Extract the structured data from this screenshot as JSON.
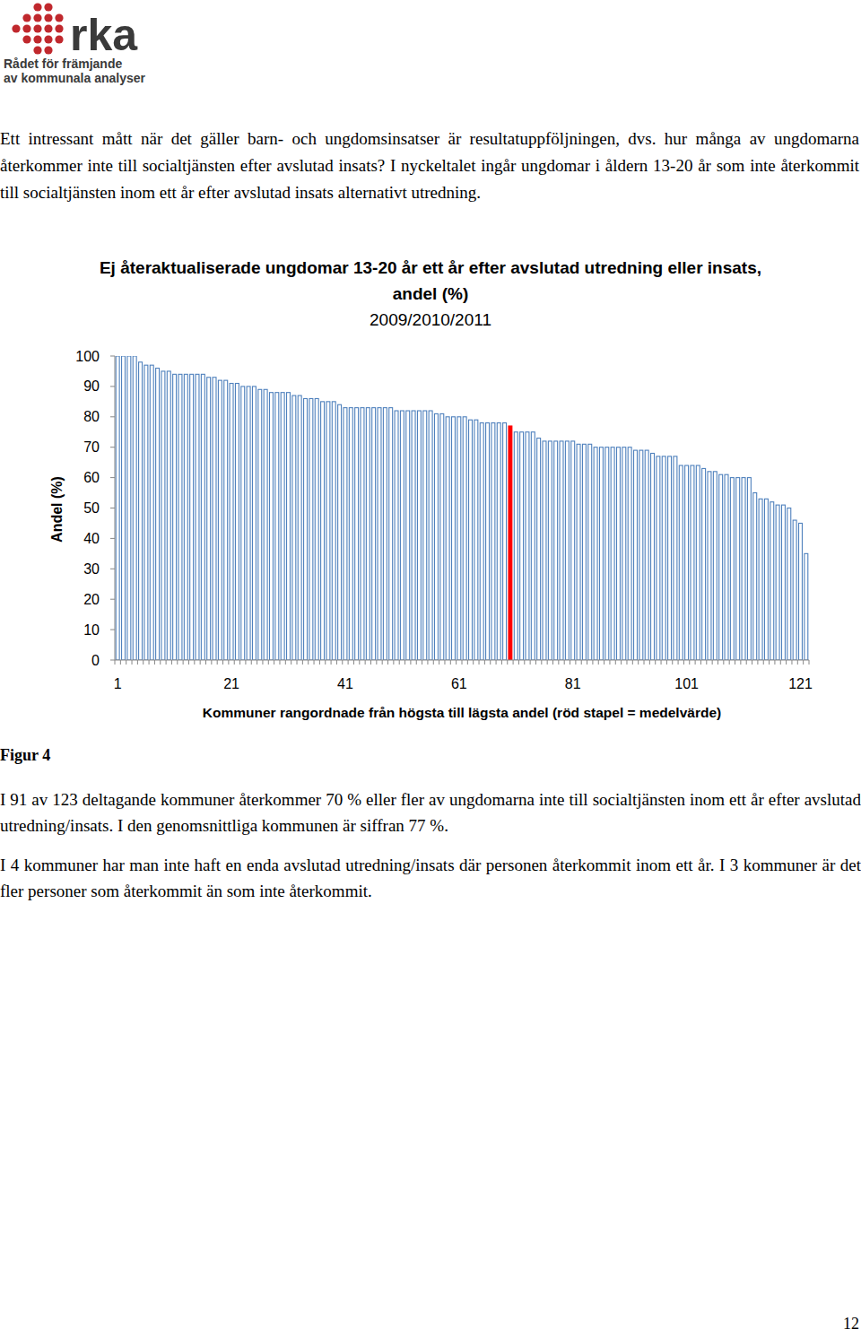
{
  "header": {
    "logo_text": "rka",
    "logo_subtitle": [
      "Rådet för främjande",
      "av kommunala analyser"
    ]
  },
  "intro": "Ett intressant mått när det gäller barn- och ungdomsinsatser är resultatuppföljningen, dvs. hur många av ungdomarna återkommer inte till socialtjänsten efter avslutad insats? I nyckeltalet ingår ungdomar i åldern 13-20 år som inte återkommit till socialtjänsten inom ett år efter avslutad insats alternativt utredning.",
  "chart_data": {
    "type": "bar",
    "title": "Ej återaktualiserade ungdomar 13-20 år ett år efter avslutad utredning eller insats, andel (%)",
    "subtitle": "2009/2010/2011",
    "x_label": "Kommuner rangordnade från högsta till lägsta andel (röd stapel = medelvärde)",
    "y_label": "Andel (%)",
    "categories": [
      "1",
      null,
      null,
      null,
      null,
      null,
      null,
      null,
      null,
      null,
      null,
      null,
      null,
      null,
      null,
      null,
      null,
      null,
      null,
      null,
      "21",
      null,
      null,
      null,
      null,
      null,
      null,
      null,
      null,
      null,
      null,
      null,
      null,
      null,
      null,
      null,
      null,
      null,
      null,
      null,
      "41",
      null,
      null,
      null,
      null,
      null,
      null,
      null,
      null,
      null,
      null,
      null,
      null,
      null,
      null,
      null,
      null,
      null,
      null,
      null,
      "61",
      null,
      null,
      null,
      null,
      null,
      null,
      null,
      null,
      null,
      null,
      null,
      null,
      null,
      null,
      null,
      null,
      null,
      null,
      null,
      "81",
      null,
      null,
      null,
      null,
      null,
      null,
      null,
      null,
      null,
      null,
      null,
      null,
      null,
      null,
      null,
      null,
      null,
      null,
      null,
      "101",
      null,
      null,
      null,
      null,
      null,
      null,
      null,
      null,
      null,
      null,
      null,
      null,
      null,
      null,
      null,
      null,
      null,
      null,
      null,
      "121",
      null
    ],
    "values": [
      100,
      100,
      100,
      100,
      98,
      97,
      97,
      96,
      95,
      95,
      94,
      94,
      94,
      94,
      94,
      94,
      93,
      93,
      92,
      92,
      91,
      91,
      90,
      90,
      90,
      89,
      89,
      88,
      88,
      88,
      88,
      87,
      87,
      86,
      86,
      86,
      85,
      85,
      85,
      84,
      83,
      83,
      83,
      83,
      83,
      83,
      83,
      83,
      83,
      82,
      82,
      82,
      82,
      82,
      82,
      82,
      81,
      81,
      80,
      80,
      80,
      80,
      79,
      79,
      78,
      78,
      78,
      78,
      78,
      77,
      75,
      75,
      75,
      75,
      73,
      72,
      72,
      72,
      72,
      72,
      72,
      71,
      71,
      71,
      70,
      70,
      70,
      70,
      70,
      70,
      70,
      69,
      69,
      69,
      68,
      67,
      67,
      67,
      67,
      64,
      64,
      64,
      64,
      63,
      62,
      62,
      61,
      61,
      60,
      60,
      60,
      60,
      55,
      53,
      53,
      52,
      51,
      51,
      50,
      46,
      45,
      35
    ],
    "colors": [
      "#4f81bd",
      "#4f81bd",
      "#4f81bd",
      "#4f81bd",
      "#4f81bd",
      "#4f81bd",
      "#4f81bd",
      "#4f81bd",
      "#4f81bd",
      "#4f81bd",
      "#4f81bd",
      "#4f81bd",
      "#4f81bd",
      "#4f81bd",
      "#4f81bd",
      "#4f81bd",
      "#4f81bd",
      "#4f81bd",
      "#4f81bd",
      "#4f81bd",
      "#4f81bd",
      "#4f81bd",
      "#4f81bd",
      "#4f81bd",
      "#4f81bd",
      "#4f81bd",
      "#4f81bd",
      "#4f81bd",
      "#4f81bd",
      "#4f81bd",
      "#4f81bd",
      "#4f81bd",
      "#4f81bd",
      "#4f81bd",
      "#4f81bd",
      "#4f81bd",
      "#4f81bd",
      "#4f81bd",
      "#4f81bd",
      "#4f81bd",
      "#4f81bd",
      "#4f81bd",
      "#4f81bd",
      "#4f81bd",
      "#4f81bd",
      "#4f81bd",
      "#4f81bd",
      "#4f81bd",
      "#4f81bd",
      "#4f81bd",
      "#4f81bd",
      "#4f81bd",
      "#4f81bd",
      "#4f81bd",
      "#4f81bd",
      "#4f81bd",
      "#4f81bd",
      "#4f81bd",
      "#4f81bd",
      "#4f81bd",
      "#4f81bd",
      "#4f81bd",
      "#4f81bd",
      "#4f81bd",
      "#4f81bd",
      "#4f81bd",
      "#4f81bd",
      "#4f81bd",
      "#4f81bd",
      "#ff0000",
      "#4f81bd",
      "#4f81bd",
      "#4f81bd",
      "#4f81bd",
      "#4f81bd",
      "#4f81bd",
      "#4f81bd",
      "#4f81bd",
      "#4f81bd",
      "#4f81bd",
      "#4f81bd",
      "#4f81bd",
      "#4f81bd",
      "#4f81bd",
      "#4f81bd",
      "#4f81bd",
      "#4f81bd",
      "#4f81bd",
      "#4f81bd",
      "#4f81bd",
      "#4f81bd",
      "#4f81bd",
      "#4f81bd",
      "#4f81bd",
      "#4f81bd",
      "#4f81bd",
      "#4f81bd",
      "#4f81bd",
      "#4f81bd",
      "#4f81bd",
      "#4f81bd",
      "#4f81bd",
      "#4f81bd",
      "#4f81bd",
      "#4f81bd",
      "#4f81bd",
      "#4f81bd",
      "#4f81bd",
      "#4f81bd",
      "#4f81bd",
      "#4f81bd",
      "#4f81bd",
      "#4f81bd",
      "#4f81bd",
      "#4f81bd",
      "#4f81bd",
      "#4f81bd",
      "#4f81bd",
      "#4f81bd",
      "#4f81bd",
      "#4f81bd",
      "#4f81bd"
    ],
    "ylim": [
      0,
      100
    ],
    "yticks": [
      0,
      10,
      20,
      30,
      40,
      50,
      60,
      70,
      80,
      90,
      100
    ],
    "grid": false
  },
  "figure_label": "Figur 4",
  "paragraphs": [
    "I 91 av 123 deltagande kommuner återkommer 70 % eller fler av ungdomarna inte till socialtjänsten inom ett år efter avslutad utredning/insats. I den genomsnittliga kommunen är siffran 77 %.",
    "I 4 kommuner har man inte haft en enda avslutad utredning/insats där personen återkommit inom ett år. I 3 kommuner är det fler personer som återkommit än som inte återkommit."
  ],
  "page_number": "12"
}
